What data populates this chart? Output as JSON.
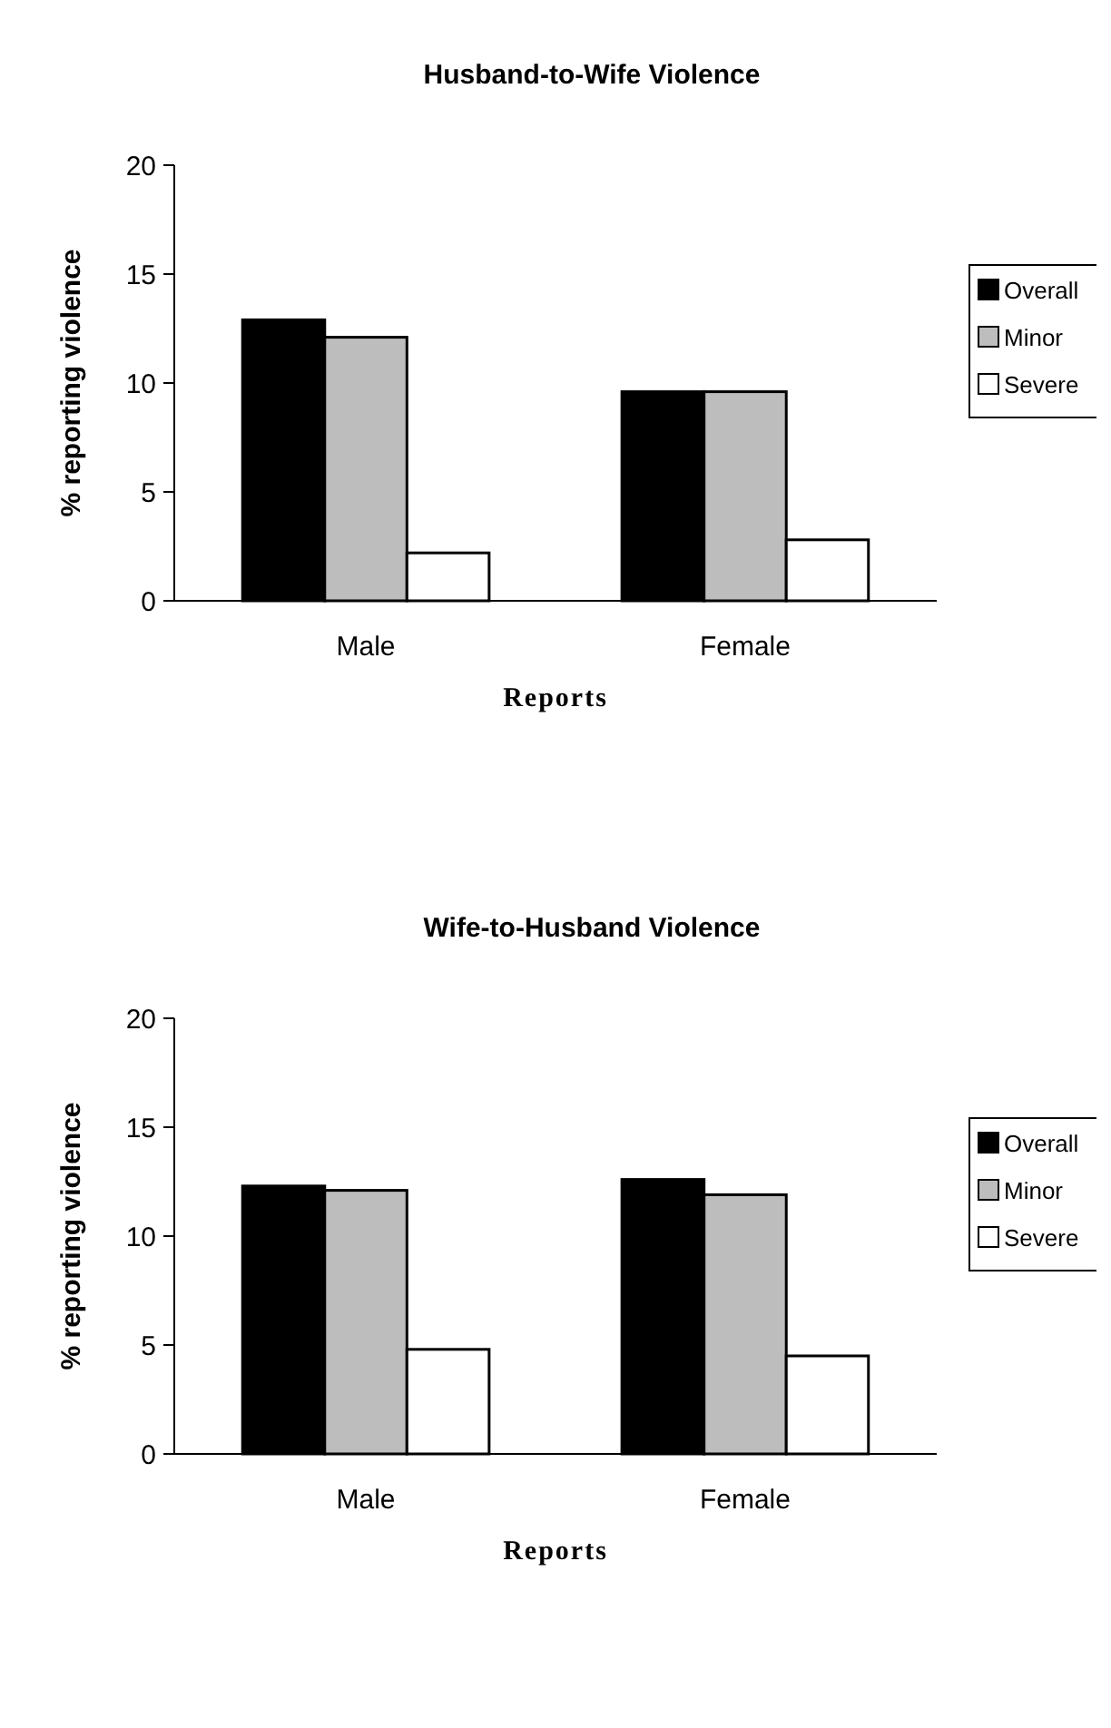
{
  "chart_data": [
    {
      "type": "bar",
      "title": "Husband-to-Wife Violence",
      "xlabel": "Reports",
      "ylabel": "% reporting violence",
      "categories": [
        "Male",
        "Female"
      ],
      "series": [
        {
          "name": "Overall",
          "color": "#000000",
          "values": [
            12.9,
            9.6
          ]
        },
        {
          "name": "Minor",
          "color": "#bdbdbd",
          "values": [
            12.1,
            9.6
          ]
        },
        {
          "name": "Severe",
          "color": "#ffffff",
          "values": [
            2.2,
            2.8
          ]
        }
      ],
      "ylim": [
        0,
        20
      ],
      "yticks": [
        0,
        5,
        10,
        15,
        20
      ],
      "legend": "right"
    },
    {
      "type": "bar",
      "title": "Wife-to-Husband Violence",
      "xlabel": "Reports",
      "ylabel": "% reporting violence",
      "categories": [
        "Male",
        "Female"
      ],
      "series": [
        {
          "name": "Overall",
          "color": "#000000",
          "values": [
            12.3,
            12.6
          ]
        },
        {
          "name": "Minor",
          "color": "#bdbdbd",
          "values": [
            12.1,
            11.9
          ]
        },
        {
          "name": "Severe",
          "color": "#ffffff",
          "values": [
            4.8,
            4.5
          ]
        }
      ],
      "ylim": [
        0,
        20
      ],
      "yticks": [
        0,
        5,
        10,
        15,
        20
      ],
      "legend": "right"
    }
  ]
}
